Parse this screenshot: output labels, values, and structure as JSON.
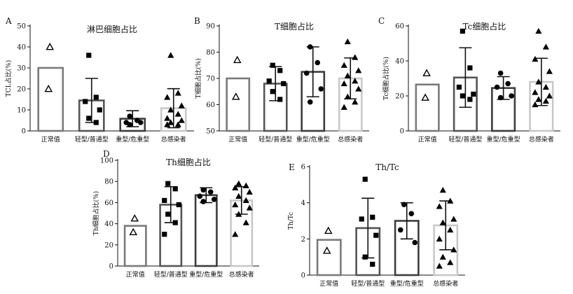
{
  "chart_data": [
    {
      "type": "bar",
      "panel_letter": "A",
      "title": "淋巴细胞占比",
      "ylabel": "TCL占比(%)",
      "ylim": [
        0,
        50
      ],
      "yticks": [
        0,
        10,
        20,
        30,
        40,
        50
      ],
      "categories": [
        "正常值",
        "轻型/普通型",
        "重型/危重型",
        "总感染者"
      ],
      "values": [
        30,
        14.5,
        5.8,
        10.8
      ],
      "error": [
        null,
        10.5,
        3.8,
        9.3
      ],
      "points": [
        [
          40,
          20
        ],
        [
          36,
          16,
          14,
          10,
          6,
          4
        ],
        [
          7,
          5,
          4,
          4,
          3
        ],
        [
          36,
          18,
          16,
          12,
          10,
          8,
          6,
          5,
          4,
          3,
          3
        ]
      ],
      "markers": [
        "triangle",
        "square",
        "circle",
        "triangle"
      ]
    },
    {
      "type": "bar",
      "panel_letter": "B",
      "title": "T细胞占比",
      "ylabel": "T细胞占比(%)",
      "ylim": [
        50,
        90
      ],
      "yticks": [
        50,
        60,
        70,
        80,
        90
      ],
      "categories": [
        "正常值",
        "轻型/普通型",
        "重型/危重型",
        "总感染者"
      ],
      "values": [
        70,
        68,
        72.5,
        70
      ],
      "error": [
        null,
        6.5,
        9.5,
        7.8
      ],
      "points": [
        [
          77,
          63
        ],
        [
          75,
          73,
          69,
          68,
          65,
          62
        ],
        [
          82,
          76,
          72,
          66,
          61
        ],
        [
          84,
          78,
          75,
          73,
          71,
          69,
          68,
          66,
          63,
          61,
          59
        ]
      ],
      "markers": [
        "triangle",
        "square",
        "circle",
        "triangle"
      ]
    },
    {
      "type": "bar",
      "panel_letter": "C",
      "title": "Tc细胞占比",
      "ylabel": "Tc细胞占比(%)",
      "ylim": [
        0,
        60
      ],
      "yticks": [
        0,
        20,
        40,
        60
      ],
      "categories": [
        "正常值",
        "轻型/普通型",
        "重型/危重型",
        "总感染者"
      ],
      "values": [
        26.5,
        30.5,
        24.5,
        28
      ],
      "error": [
        null,
        17,
        6.5,
        13.5
      ],
      "points": [
        [
          33,
          19
        ],
        [
          57,
          36,
          25,
          21,
          20,
          18
        ],
        [
          33,
          27,
          25,
          20,
          19
        ],
        [
          57,
          48,
          41,
          34,
          28,
          25,
          22,
          20,
          18,
          17,
          15
        ]
      ],
      "markers": [
        "triangle",
        "square",
        "circle",
        "triangle"
      ]
    },
    {
      "type": "bar",
      "panel_letter": "D",
      "title": "Th细胞占比",
      "ylabel": "Th细胞占比(%)",
      "ylim": [
        0,
        100
      ],
      "yticks": [
        0,
        20,
        40,
        60,
        80,
        100
      ],
      "categories": [
        "正常值",
        "轻型/普通型",
        "重型/危重型",
        "总感染者"
      ],
      "values": [
        38,
        58,
        67,
        62
      ],
      "error": [
        null,
        17,
        7,
        13
      ],
      "points": [
        [
          45,
          32
        ],
        [
          78,
          73,
          62,
          58,
          49,
          41,
          30
        ],
        [
          72,
          70,
          66,
          63,
          61
        ],
        [
          78,
          76,
          74,
          70,
          66,
          62,
          58,
          55,
          49,
          41,
          30
        ]
      ],
      "markers": [
        "triangle",
        "square",
        "circle",
        "triangle"
      ]
    },
    {
      "type": "bar",
      "panel_letter": "E",
      "title": "Th/Tc",
      "ylabel": "Th/Tc",
      "ylim": [
        0,
        6
      ],
      "yticks": [
        0,
        2,
        4,
        6
      ],
      "categories": [
        "正常值",
        "轻型/普通型",
        "重型/危重型",
        "总感染者"
      ],
      "values": [
        1.95,
        2.6,
        3,
        2.75
      ],
      "error": [
        null,
        1.65,
        1,
        1.35
      ],
      "points": [
        [
          2.45,
          1.35
        ],
        [
          5.3,
          3.2,
          3.1,
          2.2,
          1,
          0.6
        ],
        [
          3.9,
          3.4,
          2.5,
          1.8
        ],
        [
          4.7,
          4.1,
          3.8,
          3.1,
          2.9,
          2.5,
          2.0,
          1.4,
          1.0,
          0.7,
          0.5
        ]
      ],
      "markers": [
        "triangle",
        "square",
        "circle",
        "triangle"
      ]
    }
  ],
  "style": {
    "bar_colors": [
      "#7a7a7a",
      "#555555",
      "#3c3c3c",
      "#c8c8c8"
    ],
    "point_color": "#000000"
  }
}
